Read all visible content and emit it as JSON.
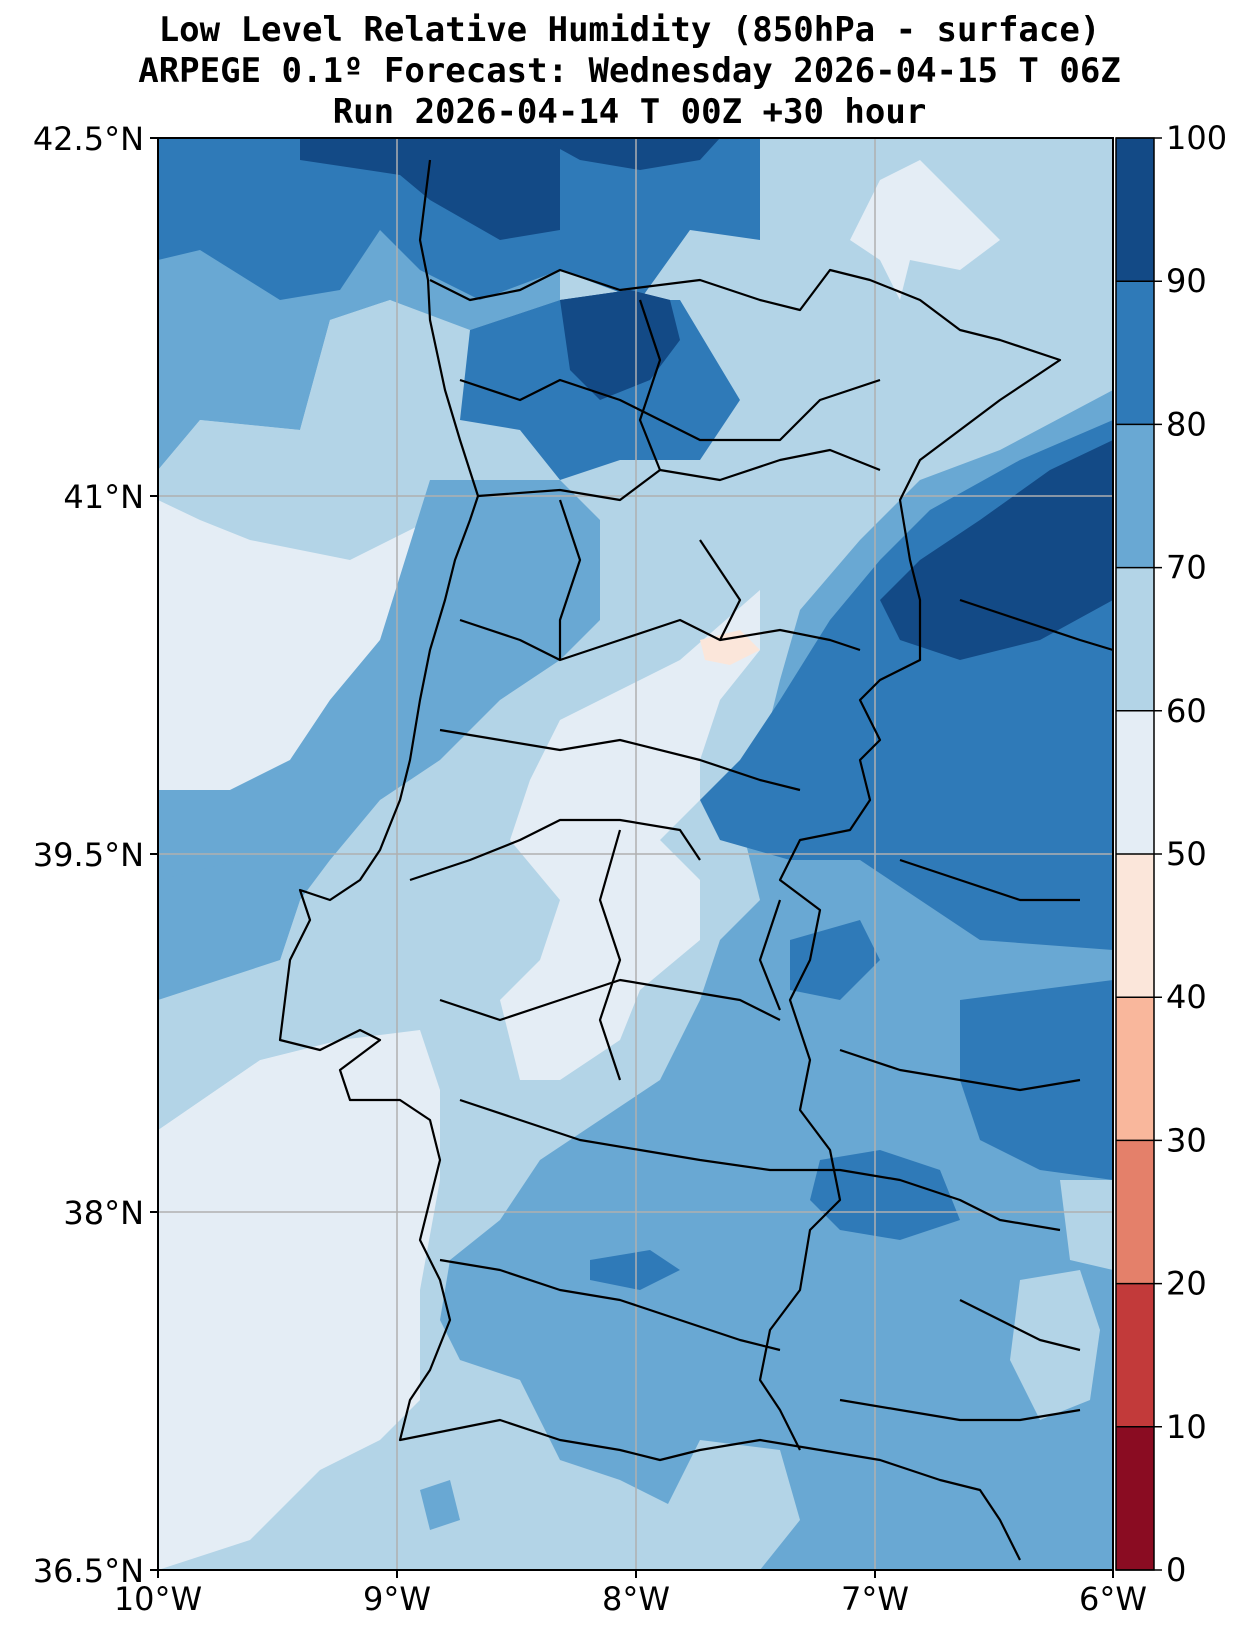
{
  "title": {
    "line1": "Low Level Relative Humidity (850hPa - surface)",
    "line2": "ARPEGE 0.1º Forecast: Wednesday 2026-04-15 T 06Z",
    "line3": "Run 2026-04-14 T 00Z +30 hour"
  },
  "map": {
    "lat_labels": [
      "42.5°N",
      "41°N",
      "39.5°N",
      "38°N",
      "36.5°N"
    ],
    "lon_labels": [
      "10°W",
      "9°W",
      "8°W",
      "7°W",
      "6°W"
    ],
    "extent": {
      "lon_min": -10,
      "lon_max": -6,
      "lat_min": 36.5,
      "lat_max": 42.5
    }
  },
  "colorbar": {
    "levels": [
      0,
      10,
      20,
      30,
      40,
      50,
      60,
      70,
      80,
      90,
      100
    ],
    "labels": [
      "0",
      "10",
      "20",
      "30",
      "40",
      "50",
      "60",
      "70",
      "80",
      "90",
      "100"
    ],
    "colors": [
      "#8a0c22",
      "#c23a3a",
      "#e4806a",
      "#f9b79c",
      "#fbe6da",
      "#e4edf5",
      "#b3d4e7",
      "#69a8d3",
      "#2f7ab8",
      "#134a86"
    ]
  },
  "colors": {
    "level_50_60": "#e4edf5",
    "level_60_70": "#b3d4e7",
    "level_70_80": "#69a8d3",
    "level_80_90": "#2f7ab8",
    "level_90_100": "#134a86",
    "level_40_50": "#fbe6da",
    "grid": "#b0b0b0",
    "border": "#000000"
  }
}
